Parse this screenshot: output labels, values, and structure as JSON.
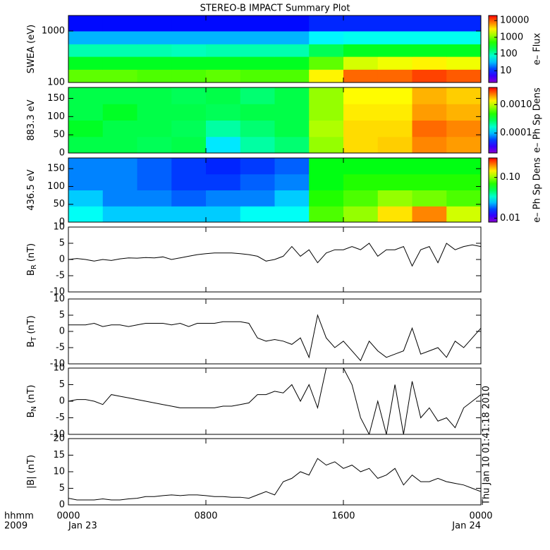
{
  "title": "STEREO-B IMPACT Summary Plot",
  "timestamp": "Thu Jan 10 01:41:18 2010",
  "x_axis": {
    "labels": [
      "hhmm",
      "2009"
    ],
    "xlim": [
      0,
      24
    ],
    "xticks": [
      {
        "value": 0,
        "label": "0000"
      },
      {
        "value": 8,
        "label": "0800"
      },
      {
        "value": 16,
        "label": "1600"
      },
      {
        "value": 24,
        "label": "0000"
      }
    ],
    "dates": [
      {
        "value": 0,
        "label": "Jan 23"
      },
      {
        "value": 24,
        "label": "Jan 24"
      }
    ]
  },
  "chart_data": [
    {
      "type": "heatmap",
      "ylabel": "SWEA (eV)",
      "log_y": true,
      "ylim": [
        100,
        2000
      ],
      "yticks": [
        100,
        1000
      ],
      "x_edges": [
        0,
        2,
        4,
        6,
        8,
        10,
        12,
        14,
        16,
        18,
        20,
        22,
        24
      ],
      "y_edges": [
        100,
        180,
        320,
        560,
        1000,
        2000
      ],
      "z": [
        [
          800,
          800,
          700,
          700,
          800,
          700,
          700,
          3000,
          9000,
          9000,
          12000,
          10000
        ],
        [
          300,
          300,
          300,
          300,
          300,
          300,
          300,
          800,
          2000,
          2500,
          3000,
          2500
        ],
        [
          100,
          100,
          100,
          90,
          100,
          100,
          100,
          200,
          300,
          300,
          300,
          300
        ],
        [
          30,
          30,
          30,
          30,
          30,
          30,
          30,
          50,
          60,
          60,
          60,
          60
        ],
        [
          8,
          8,
          8,
          8,
          8,
          8,
          8,
          10,
          10,
          10,
          10,
          10
        ]
      ],
      "zlabel": "e– Flux",
      "zlim": [
        2,
        20000
      ],
      "zticks": [
        10,
        100,
        1000,
        10000
      ]
    },
    {
      "type": "heatmap",
      "ylabel": "883.3 eV",
      "log_y": false,
      "ylim": [
        0,
        180
      ],
      "yticks": [
        0,
        50,
        100,
        150
      ],
      "x_edges": [
        0,
        2,
        4,
        6,
        8,
        10,
        12,
        14,
        16,
        18,
        20,
        22,
        24
      ],
      "y_edges": [
        0,
        45,
        90,
        135,
        180
      ],
      "z": [
        [
          0.0003,
          0.0003,
          0.00028,
          0.0003,
          0.00012,
          0.0002,
          0.00025,
          0.0008,
          0.0015,
          0.0016,
          0.0022,
          0.002
        ],
        [
          0.00035,
          0.0003,
          0.0003,
          0.00028,
          0.0002,
          0.00025,
          0.0003,
          0.0009,
          0.0015,
          0.0015,
          0.0025,
          0.0022
        ],
        [
          0.0003,
          0.00035,
          0.0003,
          0.0003,
          0.00028,
          0.0003,
          0.0003,
          0.0008,
          0.0014,
          0.0014,
          0.002,
          0.0018
        ],
        [
          0.0003,
          0.0003,
          0.0003,
          0.00028,
          0.0003,
          0.00025,
          0.0003,
          0.0008,
          0.0013,
          0.0013,
          0.0018,
          0.0016
        ]
      ],
      "zlabel": "e– Ph Sp Dens",
      "zlim": [
        2e-05,
        0.004
      ],
      "zticks": [
        0.0001,
        {
          "value": 0.001,
          "label": "0.0010"
        }
      ]
    },
    {
      "type": "heatmap",
      "ylabel": "436.5 eV",
      "log_y": false,
      "ylim": [
        0,
        180
      ],
      "yticks": [
        0,
        50,
        100,
        150
      ],
      "x_edges": [
        0,
        2,
        4,
        6,
        8,
        10,
        12,
        14,
        16,
        18,
        20,
        22,
        24
      ],
      "y_edges": [
        0,
        45,
        90,
        135,
        180
      ],
      "z": [
        [
          0.03,
          0.025,
          0.025,
          0.025,
          0.025,
          0.03,
          0.03,
          0.08,
          0.1,
          0.15,
          0.2,
          0.12
        ],
        [
          0.025,
          0.02,
          0.02,
          0.018,
          0.02,
          0.02,
          0.025,
          0.07,
          0.08,
          0.1,
          0.09,
          0.08
        ],
        [
          0.02,
          0.02,
          0.018,
          0.016,
          0.016,
          0.018,
          0.02,
          0.06,
          0.07,
          0.07,
          0.07,
          0.07
        ],
        [
          0.02,
          0.02,
          0.018,
          0.016,
          0.015,
          0.016,
          0.018,
          0.06,
          0.06,
          0.06,
          0.06,
          0.06
        ]
      ],
      "zlabel": "e– Ph Sp Dens",
      "zlim": [
        0.008,
        0.3
      ],
      "zticks": [
        0.01,
        {
          "value": 0.1,
          "label": "0.10"
        }
      ]
    },
    {
      "type": "line",
      "ylabel": "B",
      "ylabel_sub": "R",
      "ylabel_unit": "(nT)",
      "ylim": [
        -10,
        10
      ],
      "yticks": [
        -10,
        -5,
        0,
        5,
        10
      ],
      "color": "#000000",
      "x": [
        0,
        0.5,
        1,
        1.5,
        2,
        2.5,
        3,
        3.5,
        4,
        4.5,
        5,
        5.5,
        6,
        6.5,
        7,
        7.5,
        8,
        8.5,
        9,
        9.5,
        10,
        10.5,
        11,
        11.5,
        12,
        12.5,
        13,
        13.5,
        14,
        14.5,
        15,
        15.5,
        16,
        16.5,
        17,
        17.5,
        18,
        18.5,
        19,
        19.5,
        20,
        20.5,
        21,
        21.5,
        22,
        22.5,
        23,
        23.5,
        24
      ],
      "values": [
        0,
        0.3,
        0,
        -0.5,
        0,
        -0.3,
        0.2,
        0.5,
        0.4,
        0.6,
        0.5,
        0.8,
        0,
        0.5,
        1,
        1.5,
        1.8,
        2,
        2,
        2,
        1.8,
        1.5,
        1,
        -0.5,
        0,
        1,
        4,
        1,
        3,
        -1,
        2,
        3,
        3,
        4,
        3,
        5,
        1,
        3,
        3,
        4,
        -2,
        3,
        4,
        -1,
        5,
        3,
        4,
        4.5,
        4
      ]
    },
    {
      "type": "line",
      "ylabel": "B",
      "ylabel_sub": "T",
      "ylabel_unit": "(nT)",
      "ylim": [
        -10,
        10
      ],
      "yticks": [
        -10,
        -5,
        0,
        5,
        10
      ],
      "color": "#000000",
      "x": [
        0,
        0.5,
        1,
        1.5,
        2,
        2.5,
        3,
        3.5,
        4,
        4.5,
        5,
        5.5,
        6,
        6.5,
        7,
        7.5,
        8,
        8.5,
        9,
        9.5,
        10,
        10.5,
        11,
        11.5,
        12,
        12.5,
        13,
        13.5,
        14,
        14.5,
        15,
        15.5,
        16,
        16.5,
        17,
        17.5,
        18,
        18.5,
        19,
        19.5,
        20,
        20.5,
        21,
        21.5,
        22,
        22.5,
        23,
        23.5,
        24
      ],
      "values": [
        2,
        2,
        2,
        2.5,
        1.5,
        2,
        2,
        1.5,
        2,
        2.5,
        2.5,
        2.5,
        2,
        2.5,
        1.5,
        2.5,
        2.5,
        2.5,
        3,
        3,
        3,
        2.5,
        -2,
        -3,
        -2.5,
        -3,
        -4,
        -2,
        -8,
        5,
        -2,
        -5,
        -3,
        -6,
        -9,
        -3,
        -6,
        -8,
        -7,
        -6,
        1,
        -7,
        -6,
        -5,
        -8,
        -3,
        -5,
        -2,
        1
      ]
    },
    {
      "type": "line",
      "ylabel": "B",
      "ylabel_sub": "N",
      "ylabel_unit": "(nT)",
      "ylim": [
        -10,
        10
      ],
      "yticks": [
        -10,
        -5,
        0,
        5,
        10
      ],
      "color": "#000000",
      "x": [
        0,
        0.5,
        1,
        1.5,
        2,
        2.5,
        3,
        3.5,
        4,
        4.5,
        5,
        5.5,
        6,
        6.5,
        7,
        7.5,
        8,
        8.5,
        9,
        9.5,
        10,
        10.5,
        11,
        11.5,
        12,
        12.5,
        13,
        13.5,
        14,
        14.5,
        15,
        15.5,
        16,
        16.5,
        17,
        17.5,
        18,
        18.5,
        19,
        19.5,
        20,
        20.5,
        21,
        21.5,
        22,
        22.5,
        23,
        23.5,
        24
      ],
      "values": [
        0,
        0.5,
        0.5,
        0,
        -1,
        2,
        1.5,
        1,
        0.5,
        0,
        -0.5,
        -1,
        -1.5,
        -2,
        -2,
        -2,
        -2,
        -2,
        -1.5,
        -1.5,
        -1,
        -0.5,
        2,
        2,
        3,
        2.5,
        5,
        0,
        5,
        -2,
        10,
        10,
        10,
        5,
        -5,
        -10,
        0,
        -10,
        5,
        -10,
        6,
        -5,
        -2,
        -6,
        -5,
        -8,
        -2,
        0,
        2
      ]
    },
    {
      "type": "line",
      "ylabel": "|B|",
      "ylabel_unit": "(nT)",
      "ylim": [
        0,
        20
      ],
      "yticks": [
        0,
        5,
        10,
        15,
        20
      ],
      "color": "#000000",
      "x": [
        0,
        0.5,
        1,
        1.5,
        2,
        2.5,
        3,
        3.5,
        4,
        4.5,
        5,
        5.5,
        6,
        6.5,
        7,
        7.5,
        8,
        8.5,
        9,
        9.5,
        10,
        10.5,
        11,
        11.5,
        12,
        12.5,
        13,
        13.5,
        14,
        14.5,
        15,
        15.5,
        16,
        16.5,
        17,
        17.5,
        18,
        18.5,
        19,
        19.5,
        20,
        20.5,
        21,
        21.5,
        22,
        22.5,
        23,
        23.5,
        24
      ],
      "values": [
        2,
        1.5,
        1.5,
        1.5,
        1.8,
        1.5,
        1.5,
        1.8,
        2,
        2.5,
        2.5,
        2.8,
        3,
        2.8,
        3,
        3,
        2.8,
        2.5,
        2.5,
        2.3,
        2.3,
        2,
        3,
        4,
        3,
        7,
        8,
        10,
        9,
        14,
        12,
        13,
        11,
        12,
        10,
        11,
        8,
        9,
        11,
        6,
        9,
        7,
        7,
        8,
        7,
        6.5,
        6,
        5,
        4
      ]
    }
  ]
}
